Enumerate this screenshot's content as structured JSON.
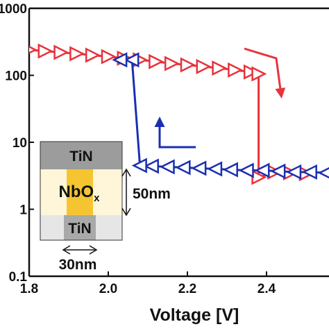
{
  "chart_data": {
    "type": "line",
    "title": "",
    "xlabel": "Voltage [V]",
    "ylabel": "",
    "xlim": [
      1.8,
      2.55
    ],
    "ylim": [
      0.1,
      1000
    ],
    "yscale": "log",
    "xticks": [
      1.8,
      2.0,
      2.2,
      2.4
    ],
    "xtick_labels": [
      "1.8",
      "2.0",
      "2.2",
      "2.4"
    ],
    "yticks": [
      0.1,
      1,
      10,
      100,
      1000
    ],
    "ytick_labels": [
      "0.1",
      "1",
      "10",
      "100",
      "1000"
    ],
    "grid": false,
    "series": [
      {
        "color": "#e8323c",
        "marker": "triangle-right",
        "x": [
          1.8,
          1.84,
          1.88,
          1.92,
          1.96,
          2.0,
          2.04,
          2.08,
          2.12,
          2.16,
          2.2,
          2.24,
          2.28,
          2.32,
          2.36,
          2.38,
          2.38,
          2.42,
          2.46,
          2.5
        ],
        "y": [
          240,
          230,
          220,
          210,
          200,
          190,
          180,
          170,
          160,
          150,
          143,
          135,
          128,
          120,
          112,
          105,
          3.0,
          3.6,
          3.5,
          3.4
        ]
      },
      {
        "color": "#1a2fb0",
        "marker": "triangle-left",
        "x": [
          2.55,
          2.51,
          2.47,
          2.43,
          2.39,
          2.35,
          2.31,
          2.27,
          2.23,
          2.19,
          2.15,
          2.11,
          2.08,
          2.06,
          2.03
        ],
        "y": [
          3.5,
          3.6,
          3.6,
          3.7,
          3.8,
          3.8,
          3.9,
          4.0,
          4.1,
          4.2,
          4.3,
          4.4,
          4.5,
          170,
          170
        ]
      }
    ],
    "inset": {
      "top_electrode": "TiN",
      "oxide_main": "NbO",
      "oxide_sub": "x",
      "bottom_electrode": "TiN",
      "thickness_label": "50nm",
      "width_label": "30nm"
    },
    "colors": {
      "tin_top": "#9c9c9c",
      "oxide_bg": "#fff6d9",
      "filament": "#f5c531",
      "tin_bottom_bg": "#e6e6e6",
      "tin_bottom_core": "#a9a9a9"
    }
  }
}
